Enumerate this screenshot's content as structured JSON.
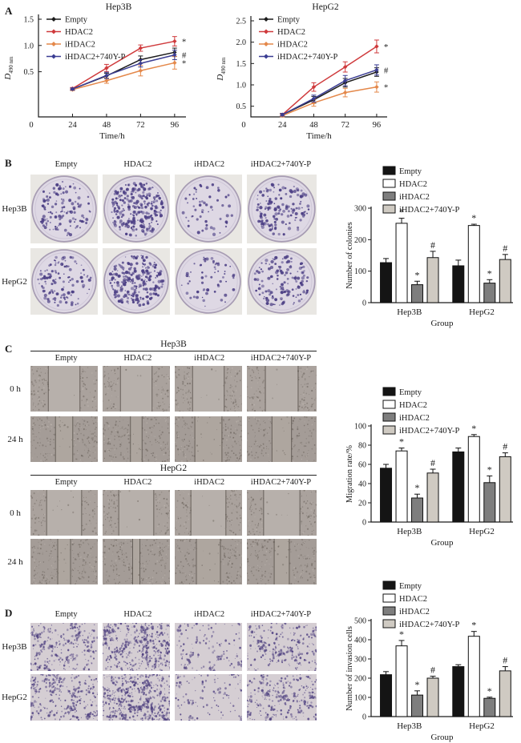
{
  "panels": [
    "A",
    "B",
    "C",
    "D"
  ],
  "conditions": [
    "Empty",
    "HDAC2",
    "iHDAC2",
    "iHDAC2+740Y-P"
  ],
  "cell_lines": [
    "Hep3B",
    "HepG2"
  ],
  "time_rows": [
    "0 h",
    "24 h"
  ],
  "colors": {
    "empty_line": "#1c1c1c",
    "hdac2_line": "#cf3a3c",
    "ihdac2_line": "#e4884a",
    "rescue_line": "#3b3d93",
    "empty_bar": "#141414",
    "hdac2_bar": "#ffffff",
    "ihdac2_bar": "#7e7e7e",
    "rescue_bar": "#cfcac2",
    "colony_stain": "#4e4186",
    "invasion_stain": "#564886"
  },
  "chart_data": [
    {
      "type": "line",
      "panel": "A",
      "title": "Hep3B",
      "xlabel": "Time/h",
      "ylabel_main": "D",
      "ylabel_sub": "490 nm",
      "x": [
        24,
        48,
        72,
        96
      ],
      "xticks": [
        "0",
        "24",
        "48",
        "72",
        "96"
      ],
      "ylim": [
        0,
        1.5
      ],
      "yticks": [
        "0.5",
        "1.0",
        "1.5"
      ],
      "legend_position": "top-left",
      "grid": false,
      "series": [
        {
          "name": "Empty",
          "color": "#1c1c1c",
          "values": [
            0.17,
            0.42,
            0.73,
            0.87
          ],
          "errors": [
            0.02,
            0.05,
            0.07,
            0.08
          ]
        },
        {
          "name": "HDAC2",
          "color": "#cf3a3c",
          "values": [
            0.18,
            0.57,
            0.95,
            1.08
          ],
          "errors": [
            0.02,
            0.07,
            0.06,
            0.09
          ]
        },
        {
          "name": "iHDAC2",
          "color": "#e4884a",
          "values": [
            0.16,
            0.33,
            0.52,
            0.67
          ],
          "errors": [
            0.02,
            0.05,
            0.1,
            0.12
          ]
        },
        {
          "name": "iHDAC2+740Y-P",
          "color": "#3b3d93",
          "values": [
            0.17,
            0.43,
            0.66,
            0.82
          ],
          "errors": [
            0.02,
            0.06,
            0.07,
            0.09
          ]
        }
      ],
      "annotations": [
        {
          "text": "*",
          "series": "HDAC2"
        },
        {
          "text": "#",
          "series": "iHDAC2+740Y-P"
        },
        {
          "text": "*",
          "series": "iHDAC2"
        }
      ]
    },
    {
      "type": "line",
      "panel": "A",
      "title": "HepG2",
      "xlabel": "Time/h",
      "ylabel_main": "D",
      "ylabel_sub": "490 nm",
      "x": [
        24,
        48,
        72,
        96
      ],
      "xticks": [
        "0",
        "24",
        "48",
        "72",
        "96"
      ],
      "ylim": [
        0,
        2.5
      ],
      "yticks": [
        "0.5",
        "1.0",
        "1.5",
        "2.0",
        "2.5"
      ],
      "legend_position": "top-left",
      "grid": false,
      "series": [
        {
          "name": "Empty",
          "color": "#1c1c1c",
          "values": [
            0.3,
            0.65,
            1.05,
            1.3
          ],
          "errors": [
            0.03,
            0.08,
            0.1,
            0.1
          ]
        },
        {
          "name": "HDAC2",
          "color": "#cf3a3c",
          "values": [
            0.3,
            0.95,
            1.42,
            1.9
          ],
          "errors": [
            0.03,
            0.1,
            0.12,
            0.15
          ]
        },
        {
          "name": "iHDAC2",
          "color": "#e4884a",
          "values": [
            0.28,
            0.58,
            0.82,
            0.95
          ],
          "errors": [
            0.03,
            0.08,
            0.1,
            0.12
          ]
        },
        {
          "name": "iHDAC2+740Y-P",
          "color": "#3b3d93",
          "values": [
            0.3,
            0.68,
            1.1,
            1.35
          ],
          "errors": [
            0.03,
            0.08,
            0.12,
            0.12
          ]
        }
      ],
      "annotations": [
        {
          "text": "*",
          "series": "HDAC2"
        },
        {
          "text": "#",
          "series": "iHDAC2+740Y-P"
        },
        {
          "text": "*",
          "series": "iHDAC2"
        }
      ]
    },
    {
      "type": "bar",
      "panel": "B",
      "ylabel": "Number of colonies",
      "xlabel": "Group",
      "categories": [
        "Hep3B",
        "HepG2"
      ],
      "ylim": [
        0,
        300
      ],
      "yticks": [
        "0",
        "100",
        "200",
        "300"
      ],
      "legend_position": "top",
      "grid": false,
      "series": [
        {
          "name": "Empty",
          "fill": "#141414",
          "values": [
            127,
            117
          ],
          "errors": [
            13,
            18
          ],
          "sig": [
            "",
            ""
          ]
        },
        {
          "name": "HDAC2",
          "fill": "#ffffff",
          "values": [
            252,
            245
          ],
          "errors": [
            16,
            4
          ],
          "sig": [
            "*",
            "*"
          ]
        },
        {
          "name": "iHDAC2",
          "fill": "#7e7e7e",
          "values": [
            57,
            62
          ],
          "errors": [
            11,
            11
          ],
          "sig": [
            "*",
            "*"
          ]
        },
        {
          "name": "iHDAC2+740Y-P",
          "fill": "#cfcac2",
          "values": [
            143,
            137
          ],
          "errors": [
            20,
            16
          ],
          "sig": [
            "#",
            "#"
          ]
        }
      ]
    },
    {
      "type": "bar",
      "panel": "C",
      "ylabel": "Migration rate/%",
      "xlabel": "Group",
      "categories": [
        "Hep3B",
        "HepG2"
      ],
      "ylim": [
        0,
        100
      ],
      "yticks": [
        "0",
        "20",
        "40",
        "60",
        "80",
        "100"
      ],
      "legend_position": "top",
      "grid": false,
      "series": [
        {
          "name": "Empty",
          "fill": "#141414",
          "values": [
            56,
            73
          ],
          "errors": [
            4,
            4
          ],
          "sig": [
            "",
            ""
          ]
        },
        {
          "name": "HDAC2",
          "fill": "#ffffff",
          "values": [
            74,
            89
          ],
          "errors": [
            3,
            2
          ],
          "sig": [
            "*",
            "*"
          ]
        },
        {
          "name": "iHDAC2",
          "fill": "#7e7e7e",
          "values": [
            25,
            41
          ],
          "errors": [
            4,
            7
          ],
          "sig": [
            "*",
            "*"
          ]
        },
        {
          "name": "iHDAC2+740Y-P",
          "fill": "#cfcac2",
          "values": [
            51,
            68
          ],
          "errors": [
            4,
            4
          ],
          "sig": [
            "#",
            "#"
          ]
        }
      ]
    },
    {
      "type": "bar",
      "panel": "D",
      "ylabel": "Number of invasion cells",
      "xlabel": "Group",
      "categories": [
        "Hep3B",
        "HepG2"
      ],
      "ylim": [
        0,
        500
      ],
      "yticks": [
        "0",
        "100",
        "200",
        "300",
        "400",
        "500"
      ],
      "legend_position": "top",
      "grid": false,
      "series": [
        {
          "name": "Empty",
          "fill": "#141414",
          "values": [
            218,
            260
          ],
          "errors": [
            16,
            10
          ],
          "sig": [
            "",
            ""
          ]
        },
        {
          "name": "HDAC2",
          "fill": "#ffffff",
          "values": [
            368,
            418
          ],
          "errors": [
            28,
            25
          ],
          "sig": [
            "*",
            "*"
          ]
        },
        {
          "name": "iHDAC2",
          "fill": "#7e7e7e",
          "values": [
            112,
            95
          ],
          "errors": [
            22,
            6
          ],
          "sig": [
            "*",
            "*"
          ]
        },
        {
          "name": "iHDAC2+740Y-P",
          "fill": "#cfcac2",
          "values": [
            200,
            238
          ],
          "errors": [
            10,
            22
          ],
          "sig": [
            "#",
            "#"
          ]
        }
      ]
    }
  ]
}
